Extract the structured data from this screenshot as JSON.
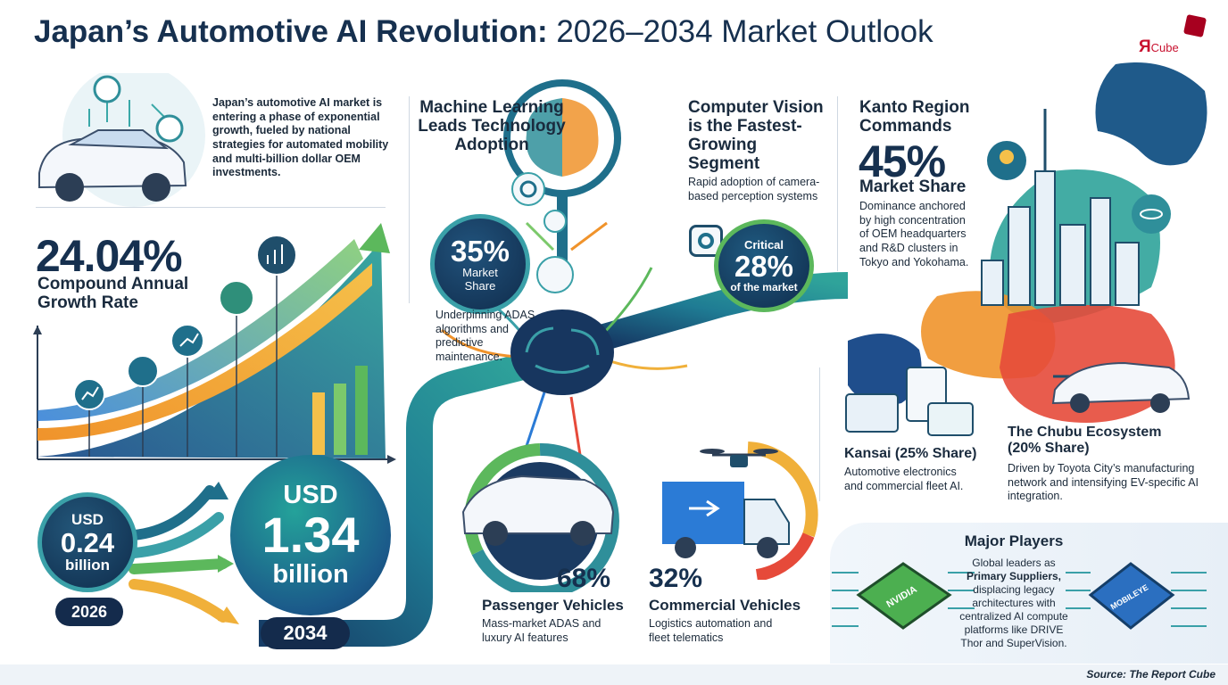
{
  "header": {
    "title_bold": "Japan’s Automotive AI Revolution:",
    "title_light": "2026–2034 Market Outlook",
    "logo_r": "Я",
    "logo_cube": "Cube"
  },
  "intro": {
    "text": "Japan’s automotive AI market is entering a phase of exponential growth, fueled by national strategies for automated mobility and multi-billion dollar OEM investments."
  },
  "cagr": {
    "value": "24.04%",
    "label_line1": "Compound Annual",
    "label_line2": "Growth Rate"
  },
  "market_size": {
    "start_currency": "USD",
    "start_value": "0.24",
    "start_unit": "billion",
    "start_year": "2026",
    "end_currency": "USD",
    "end_value": "1.34",
    "end_unit": "billion",
    "end_year": "2034"
  },
  "machine_learning": {
    "heading_line1": "Machine Learning",
    "heading_line2": "Leads Technology",
    "heading_line3": "Adoption",
    "share_value": "35%",
    "share_label_line1": "Market",
    "share_label_line2": "Share",
    "desc": "Underpinning ADAS algorithms and predictive maintenance."
  },
  "computer_vision": {
    "heading_line1": "Computer Vision",
    "heading_line2": "is the Fastest-",
    "heading_line3": "Growing",
    "heading_line4": "Segment",
    "desc": "Rapid adoption of camera-based perception systems",
    "badge_top": "Critical",
    "badge_value": "28%",
    "badge_bottom": "of the market"
  },
  "kanto": {
    "heading_line1": "Kanto Region",
    "heading_line2": "Commands",
    "value": "45%",
    "value_label": "Market Share",
    "desc": "Dominance anchored by high concentration of OEM headquarters and R&D clusters in Tokyo and Yokohama."
  },
  "kansai": {
    "heading": "Kansai (25% Share)",
    "desc": "Automotive electronics and commercial fleet AI."
  },
  "chubu": {
    "heading_line1": "The Chubu Ecosystem",
    "heading_line2": "(20% Share)",
    "desc": "Driven by Toyota City’s manufacturing network and intensifying EV-specific AI integration."
  },
  "passenger": {
    "value": "68%",
    "heading": "Passenger Vehicles",
    "desc": "Mass-market ADAS and luxury AI features"
  },
  "commercial": {
    "value": "32%",
    "heading": "Commercial Vehicles",
    "desc": "Logistics automation and fleet telematics"
  },
  "players": {
    "heading": "Major Players",
    "desc_pre": "Global leaders as",
    "desc_bold": "Primary Suppliers,",
    "desc_post": "displacing legacy architectures with centralized AI compute platforms like DRIVE Thor and SuperVision.",
    "chip1_label": "NVIDIA",
    "chip2_label": "MOBILEYE"
  },
  "footer": {
    "source": "Source: The Report Cube"
  },
  "colors": {
    "navy": "#16304f",
    "teal": "#1f8f96",
    "green": "#5cb85c",
    "orange": "#f0932b",
    "red": "#e64a3a",
    "blue": "#2b7bd6"
  }
}
